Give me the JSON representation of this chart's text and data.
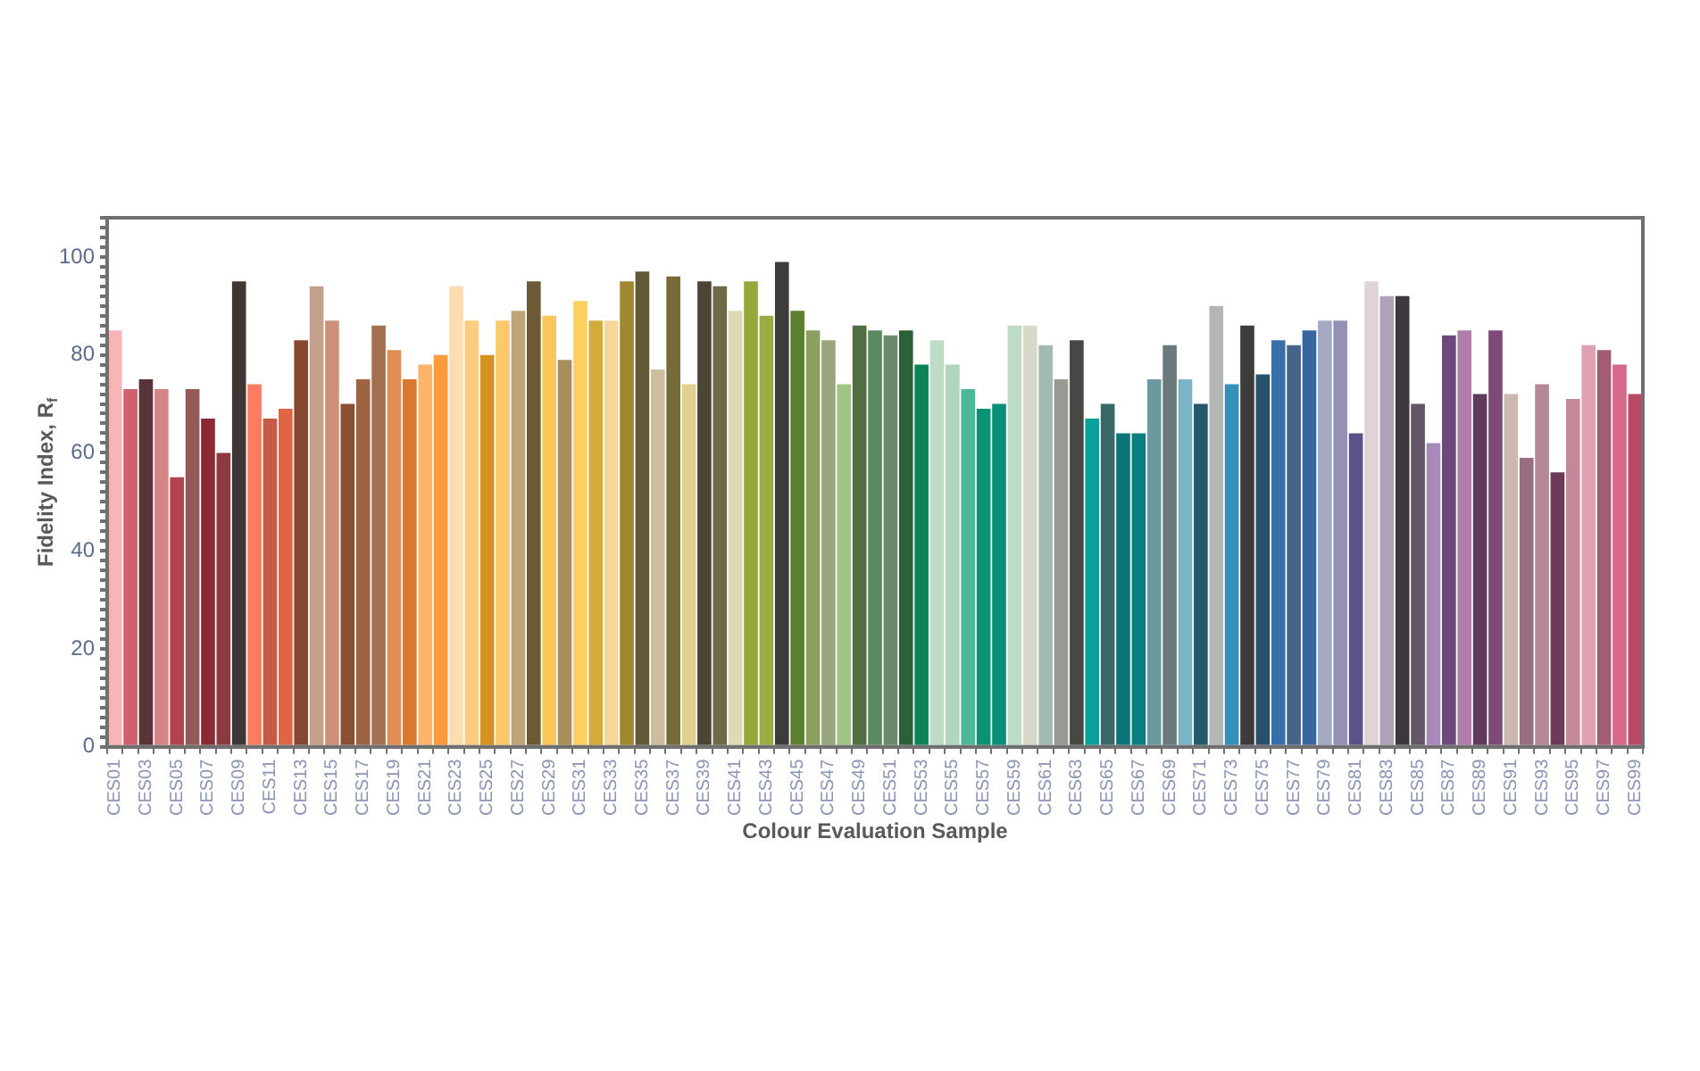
{
  "chart_data": {
    "type": "bar",
    "xlabel": "Colour Evaluation Sample",
    "ylabel": "Fidelity Index, R$_{f}$",
    "categories": [
      "CES01",
      null,
      "CES03",
      null,
      "CES05",
      null,
      "CES07",
      null,
      "CES09",
      null,
      "CES11",
      null,
      "CES13",
      null,
      "CES15",
      null,
      "CES17",
      null,
      "CES19",
      null,
      "CES21",
      null,
      "CES23",
      null,
      "CES25",
      null,
      "CES27",
      null,
      "CES29",
      null,
      "CES31",
      null,
      "CES33",
      null,
      "CES35",
      null,
      "CES37",
      null,
      "CES39",
      null,
      "CES41",
      null,
      "CES43",
      null,
      "CES45",
      null,
      "CES47",
      null,
      "CES49",
      null,
      "CES51",
      null,
      "CES53",
      null,
      "CES55",
      null,
      "CES57",
      null,
      "CES59",
      null,
      "CES61",
      null,
      "CES63",
      null,
      "CES65",
      null,
      "CES67",
      null,
      "CES69",
      null,
      "CES71",
      null,
      "CES73",
      null,
      "CES75",
      null,
      "CES77",
      null,
      "CES79",
      null,
      "CES81",
      null,
      "CES83",
      null,
      "CES85",
      null,
      "CES87",
      null,
      "CES89",
      null,
      "CES91",
      null,
      "CES93",
      null,
      "CES95",
      null,
      "CES97",
      null,
      "CES99"
    ],
    "values": [
      85,
      73,
      75,
      73,
      55,
      73,
      67,
      60,
      95,
      74,
      67,
      69,
      83,
      94,
      87,
      70,
      75,
      86,
      81,
      75,
      78,
      80,
      94,
      87,
      80,
      87,
      89,
      95,
      88,
      79,
      91,
      87,
      87,
      95,
      97,
      77,
      96,
      74,
      95,
      94,
      89,
      95,
      88,
      99,
      89,
      85,
      83,
      74,
      86,
      85,
      84,
      85,
      78,
      83,
      78,
      73,
      69,
      70,
      86,
      86,
      82,
      75,
      83,
      67,
      70,
      64,
      64,
      75,
      82,
      75,
      70,
      90,
      74,
      86,
      76,
      83,
      82,
      85,
      87,
      87,
      64,
      95,
      92,
      92,
      70,
      62,
      84,
      85,
      72,
      85,
      72,
      59,
      74,
      56,
      71,
      82,
      81,
      78,
      72
    ],
    "colors": [
      "#f9b4b8",
      "#d0606e",
      "#5a3338",
      "#d48486",
      "#b4424e",
      "#935858",
      "#8b2a33",
      "#8c3a40",
      "#3f3734",
      "#fb7c60",
      "#c75a45",
      "#e06545",
      "#874832",
      "#c4a08c",
      "#cd917a",
      "#8b5033",
      "#9e6341",
      "#a37050",
      "#df8d55",
      "#d9782e",
      "#fdb36a",
      "#fc9a3e",
      "#fddcb0",
      "#fccd80",
      "#d8901f",
      "#fcc96a",
      "#bca678",
      "#6b5a35",
      "#f9c65a",
      "#a88e5a",
      "#fbd060",
      "#d4aa38",
      "#f5d898",
      "#a08830",
      "#625835",
      "#cfbc9e",
      "#756b38",
      "#e2d090",
      "#4a4535",
      "#6e6a48",
      "#e0d9b5",
      "#98a838",
      "#9aac40",
      "#3e3c38",
      "#5c8030",
      "#8aa060",
      "#98a87c",
      "#a0c482",
      "#4f6e42",
      "#5a8a60",
      "#688a68",
      "#2e6038",
      "#0c8458",
      "#bcdcc6",
      "#b0d6c0",
      "#4cb89a",
      "#0a9274",
      "#0a8f7a",
      "#bedbc8",
      "#d8d8ca",
      "#a2bab2",
      "#969a90",
      "#474744",
      "#0aa09a",
      "#3a6868",
      "#0b7478",
      "#0a7e80",
      "#6a9aa0",
      "#6a7a7a",
      "#7ab4c8",
      "#24586a",
      "#b4b6b4",
      "#3490b8",
      "#3c3c3a",
      "#28506a",
      "#3670a8",
      "#46648a",
      "#3866a0",
      "#a4aac4",
      "#9490b6",
      "#5a5288",
      "#ded4d8",
      "#b0a0b8",
      "#3e383c",
      "#625668",
      "#a88ab8",
      "#6a4a7a",
      "#b07ca8",
      "#5e3a5c",
      "#7e4a78",
      "#cbb8ae",
      "#9a6e82",
      "#b48896",
      "#6c3a58",
      "#c48898",
      "#e0a2b2",
      "#a45c74",
      "#d6688a",
      "#b84a66"
    ],
    "ylim": [
      0,
      108
    ],
    "yticks": [
      0,
      {
        "value": 2,
        "label": null
      },
      {
        "value": 4,
        "label": null
      },
      {
        "value": 6,
        "label": null
      },
      {
        "value": 8,
        "label": null
      },
      {
        "value": 10,
        "label": null
      },
      {
        "value": 12,
        "label": null
      },
      {
        "value": 14,
        "label": null
      },
      {
        "value": 16,
        "label": null
      },
      {
        "value": 18,
        "label": null
      },
      20,
      {
        "value": 22,
        "label": null
      },
      {
        "value": 24,
        "label": null
      },
      {
        "value": 26,
        "label": null
      },
      {
        "value": 28,
        "label": null
      },
      {
        "value": 30,
        "label": null
      },
      {
        "value": 32,
        "label": null
      },
      {
        "value": 34,
        "label": null
      },
      {
        "value": 36,
        "label": null
      },
      {
        "value": 38,
        "label": null
      },
      40,
      {
        "value": 42,
        "label": null
      },
      {
        "value": 44,
        "label": null
      },
      {
        "value": 46,
        "label": null
      },
      {
        "value": 48,
        "label": null
      },
      {
        "value": 50,
        "label": null
      },
      {
        "value": 52,
        "label": null
      },
      {
        "value": 54,
        "label": null
      },
      {
        "value": 56,
        "label": null
      },
      {
        "value": 58,
        "label": null
      },
      60,
      {
        "value": 62,
        "label": null
      },
      {
        "value": 64,
        "label": null
      },
      {
        "value": 66,
        "label": null
      },
      {
        "value": 68,
        "label": null
      },
      {
        "value": 70,
        "label": null
      },
      {
        "value": 72,
        "label": null
      },
      {
        "value": 74,
        "label": null
      },
      {
        "value": 76,
        "label": null
      },
      {
        "value": 78,
        "label": null
      },
      80,
      {
        "value": 82,
        "label": null
      },
      {
        "value": 84,
        "label": null
      },
      {
        "value": 86,
        "label": null
      },
      {
        "value": 88,
        "label": null
      },
      {
        "value": 90,
        "label": null
      },
      {
        "value": 92,
        "label": null
      },
      {
        "value": 94,
        "label": null
      },
      {
        "value": 96,
        "label": null
      },
      {
        "value": 98,
        "label": null
      },
      100,
      {
        "value": 102,
        "label": null
      },
      {
        "value": 104,
        "label": null
      },
      {
        "value": 106,
        "label": null
      },
      {
        "value": 108,
        "label": null
      }
    ],
    "grid": false,
    "legend": false
  }
}
